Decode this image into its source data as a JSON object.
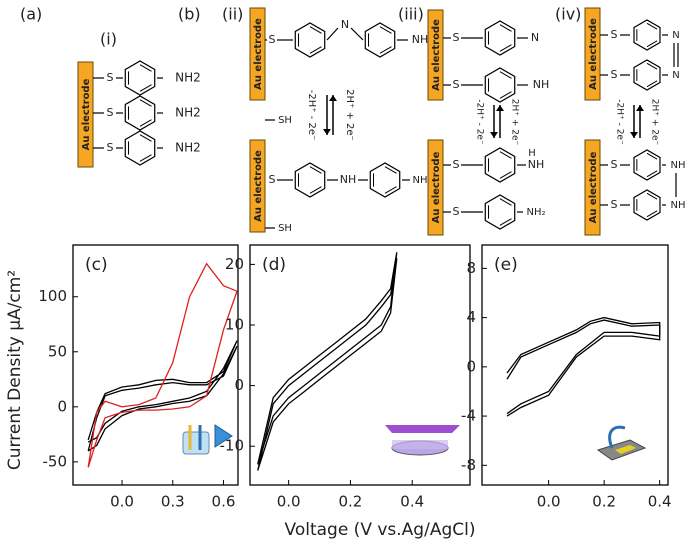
{
  "schemes": {
    "labels": [
      "(a)",
      "(b)",
      "(i)",
      "(ii)",
      "(iii)",
      "(iv)"
    ],
    "electrode": "Au electrode",
    "S": "S",
    "SH": "SH",
    "N": "N",
    "NH": "NH",
    "H": "H",
    "NH2": "NH2",
    "NH2_sub": "NH₂",
    "forward": "2H⁺ + 2e⁻",
    "reverse": "-2H⁺ - 2e⁻"
  },
  "shared_axes": {
    "ylabel": "Current Density μA/cm²",
    "xlabel": "Voltage (V vs.Ag/AgCl)"
  },
  "chart_data": [
    {
      "type": "line",
      "title": "(c)",
      "x": [
        -0.2,
        -0.15,
        -0.1,
        0,
        0.1,
        0.2,
        0.3,
        0.4,
        0.5,
        0.6,
        0.68,
        0.6,
        0.5,
        0.4,
        0.3,
        0.2,
        0.1,
        0,
        -0.1,
        -0.15,
        -0.2
      ],
      "series": [
        {
          "color": "#000000",
          "values": [
            -40,
            -10,
            10,
            15,
            17,
            20,
            22,
            20,
            20,
            28,
            55,
            30,
            10,
            5,
            3,
            0,
            -2,
            -8,
            -20,
            -35,
            -40
          ]
        },
        {
          "color": "#000000",
          "values": [
            -30,
            -5,
            12,
            18,
            20,
            24,
            25,
            22,
            22,
            32,
            60,
            35,
            14,
            8,
            5,
            2,
            0,
            -4,
            -15,
            -28,
            -32
          ]
        },
        {
          "color": "#e02020",
          "values": [
            -55,
            -5,
            5,
            0,
            2,
            8,
            40,
            100,
            130,
            110,
            105,
            70,
            10,
            0,
            -2,
            -3,
            -3,
            -5,
            -10,
            -30,
            -55
          ]
        }
      ],
      "xlim": [
        -0.29,
        0.686
      ],
      "ylim": [
        -71,
        147
      ],
      "xticks": [
        {
          "value": 0,
          "label": "0.0"
        },
        {
          "value": 0.3,
          "label": "0.3"
        },
        {
          "value": 0.6,
          "label": "0.6"
        }
      ],
      "yticks": [
        -50,
        0,
        50,
        100
      ]
    },
    {
      "type": "line",
      "title": "(d)",
      "x": [
        -0.1,
        -0.05,
        0,
        0.05,
        0.1,
        0.15,
        0.2,
        0.25,
        0.3,
        0.33,
        0.35,
        0.33,
        0.3,
        0.25,
        0.2,
        0.15,
        0.1,
        0.05,
        0,
        -0.05,
        -0.1
      ],
      "series": [
        {
          "color": "#000000",
          "values": [
            -14,
            -3,
            0,
            2,
            4,
            6,
            8,
            10,
            13,
            15,
            21,
            12,
            9,
            7,
            5,
            3,
            1,
            -1,
            -3,
            -6,
            -14
          ]
        },
        {
          "color": "#000000",
          "values": [
            -13,
            -2,
            1,
            3,
            5,
            7,
            9,
            11,
            14,
            16,
            22,
            13,
            10,
            8,
            6,
            4,
            2,
            0,
            -2,
            -5,
            -13
          ]
        }
      ],
      "xlim": [
        -0.125,
        0.587
      ],
      "ylim": [
        -16.4,
        23.2
      ],
      "xticks": [
        {
          "value": 0,
          "label": "0.0"
        },
        {
          "value": 0.2,
          "label": "0.2"
        },
        {
          "value": 0.4,
          "label": "0.4"
        }
      ],
      "yticks": [
        -10,
        0,
        10,
        20
      ]
    },
    {
      "type": "line",
      "title": "(e)",
      "x": [
        -0.15,
        -0.1,
        0,
        0.1,
        0.15,
        0.2,
        0.3,
        0.4,
        0.4,
        0.3,
        0.2,
        0.1,
        0,
        -0.1,
        -0.15
      ],
      "series": [
        {
          "color": "#000000",
          "values": [
            -0.5,
            1,
            2,
            3,
            3.7,
            4,
            3.5,
            3.6,
            2.5,
            2.8,
            2.8,
            1,
            -2,
            -3,
            -3.8
          ]
        },
        {
          "color": "#000000",
          "values": [
            -1,
            0.8,
            1.8,
            2.8,
            3.5,
            3.8,
            3.3,
            3.4,
            2.2,
            2.5,
            2.5,
            0.8,
            -2.3,
            -3.3,
            -4
          ]
        }
      ],
      "xlim": [
        -0.24,
        0.43
      ],
      "ylim": [
        -9.6,
        9.9
      ],
      "xticks": [
        {
          "value": 0,
          "label": "0.0"
        },
        {
          "value": 0.2,
          "label": "0.2"
        },
        {
          "value": 0.4,
          "label": "0.4"
        }
      ],
      "yticks": [
        -8,
        -4,
        0,
        4,
        8
      ]
    }
  ]
}
